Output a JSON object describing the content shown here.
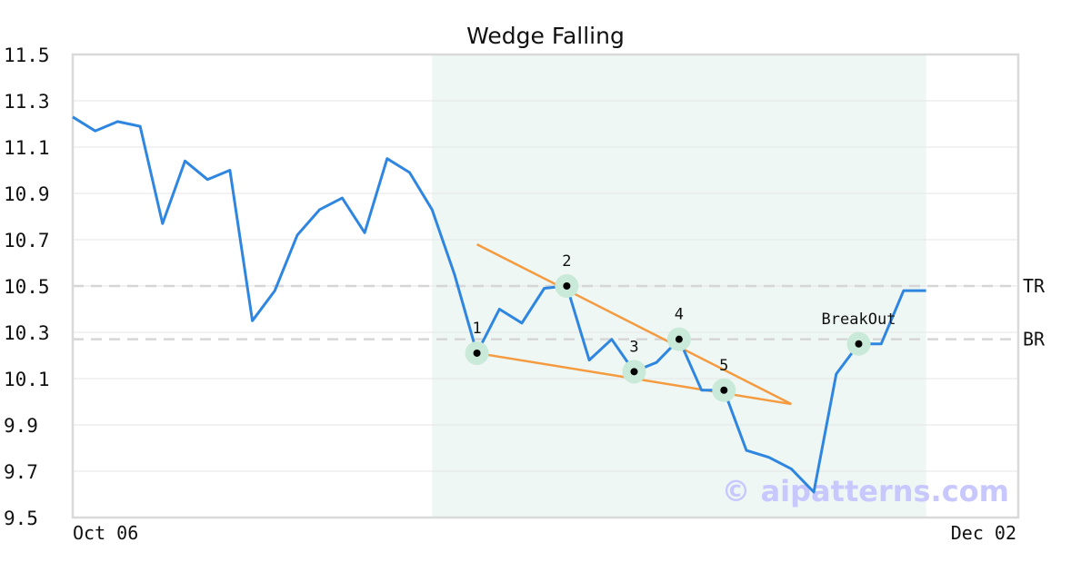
{
  "chart_data": {
    "type": "line",
    "title": "Wedge Falling",
    "xlabel": "",
    "ylabel": "",
    "ylim": [
      9.5,
      11.5
    ],
    "y_ticks": [
      "11.5",
      "11.3",
      "11.1",
      "10.9",
      "10.7",
      "10.5",
      "10.3",
      "10.1",
      "9.9",
      "9.7",
      "9.5"
    ],
    "x_tick_labels": [
      "Oct 06",
      "Dec 02"
    ],
    "grid": true,
    "series": [
      {
        "values": [
          11.23,
          11.17,
          11.21,
          11.19,
          10.77,
          11.04,
          10.96,
          11.0,
          10.35,
          10.48,
          10.72,
          10.83,
          10.88,
          10.73,
          11.05,
          10.99,
          10.83,
          10.55,
          10.21,
          10.4,
          10.34,
          10.49,
          10.5,
          10.18,
          10.27,
          10.13,
          10.17,
          10.27,
          10.05,
          10.05,
          9.79,
          9.76,
          9.71,
          9.61,
          10.12,
          10.25,
          10.25,
          10.48,
          10.48
        ],
        "color": "#2f86e0"
      }
    ],
    "highlight_region": {
      "start_index": 16,
      "end_index": 38,
      "color": "#eef7f3"
    },
    "reference_lines": [
      {
        "label": "TR",
        "y": 10.5
      },
      {
        "label": "BR",
        "y": 10.27
      }
    ],
    "trend_lines": [
      {
        "from_index": 18,
        "from_y": 10.68,
        "to_index": 32,
        "to_y": 9.99,
        "color": "#f59a3e"
      },
      {
        "from_index": 18,
        "from_y": 10.21,
        "to_index": 32,
        "to_y": 9.99,
        "color": "#f59a3e"
      }
    ],
    "annotations": [
      {
        "label": "1",
        "index": 18,
        "y": 10.21
      },
      {
        "label": "2",
        "index": 22,
        "y": 10.5
      },
      {
        "label": "3",
        "index": 25,
        "y": 10.13
      },
      {
        "label": "4",
        "index": 27,
        "y": 10.27
      },
      {
        "label": "5",
        "index": 29,
        "y": 10.05
      },
      {
        "label": "BreakOut",
        "index": 35,
        "y": 10.25
      }
    ],
    "watermark": "© aipatterns.com"
  }
}
